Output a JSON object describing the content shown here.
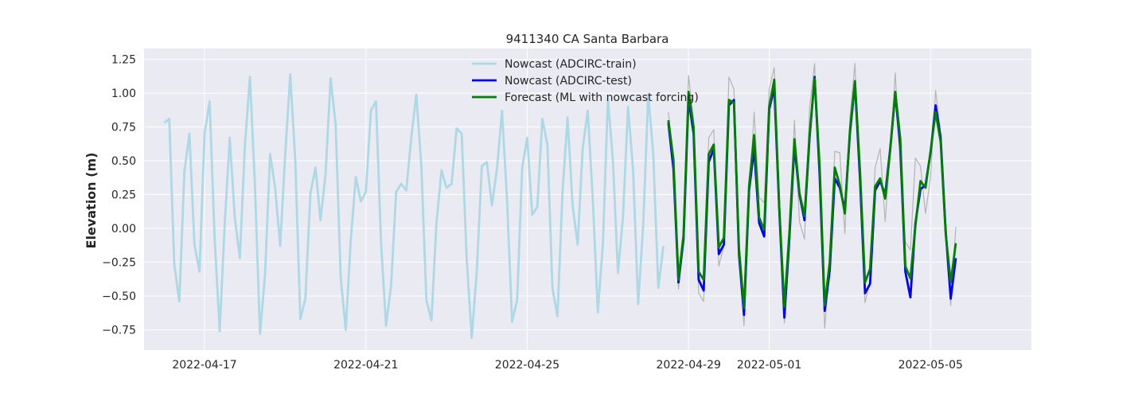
{
  "chart_data": {
    "type": "line",
    "title": "9411340 CA Santa Barbara",
    "ylabel": "Elevation (m)",
    "xlabel": "",
    "xlim": [
      "2022-04-15T12:00",
      "2022-05-07T12:00"
    ],
    "ylim": [
      -0.9,
      1.33
    ],
    "yticks": [
      -0.75,
      -0.5,
      -0.25,
      0.0,
      0.25,
      0.5,
      0.75,
      1.0,
      1.25
    ],
    "ytick_labels": [
      "−0.75",
      "−0.50",
      "−0.25",
      "0.00",
      "0.25",
      "0.50",
      "0.75",
      "1.00",
      "1.25"
    ],
    "xticks": [
      "2022-04-17",
      "2022-04-21",
      "2022-04-25",
      "2022-04-29",
      "2022-05-01",
      "2022-05-05"
    ],
    "grid": true,
    "legend_position": "top-center",
    "series": [
      {
        "name": "Nowcast (ADCIRC-train)",
        "color": "#add8e6",
        "start": "2022-04-16T00:00",
        "step_hours": 3,
        "values": [
          0.78,
          0.81,
          -0.27,
          -0.54,
          0.42,
          0.7,
          -0.12,
          -0.32,
          0.7,
          0.94,
          -0.07,
          -0.76,
          0.03,
          0.67,
          0.08,
          -0.22,
          0.61,
          1.12,
          0.31,
          -0.78,
          -0.34,
          0.55,
          0.3,
          -0.13,
          0.55,
          1.14,
          0.5,
          -0.67,
          -0.52,
          0.26,
          0.45,
          0.06,
          0.4,
          1.11,
          0.77,
          -0.36,
          -0.75,
          -0.09,
          0.38,
          0.2,
          0.27,
          0.87,
          0.94,
          -0.1,
          -0.72,
          -0.42,
          0.27,
          0.33,
          0.28,
          0.67,
          0.99,
          0.46,
          -0.53,
          -0.68,
          0.04,
          0.43,
          0.3,
          0.33,
          0.74,
          0.7,
          -0.23,
          -0.81,
          -0.31,
          0.46,
          0.49,
          0.17,
          0.44,
          0.87,
          0.21,
          -0.69,
          -0.53,
          0.45,
          0.67,
          0.1,
          0.16,
          0.81,
          0.62,
          -0.44,
          -0.65,
          0.27,
          0.82,
          0.17,
          -0.12,
          0.59,
          0.87,
          0.22,
          -0.62,
          -0.12,
          0.96,
          0.5,
          -0.33,
          0.09,
          0.9,
          0.43,
          -0.56,
          0.02,
          0.99,
          0.55,
          -0.44,
          -0.13
        ]
      },
      {
        "name": "",
        "color": "#b4b4b4",
        "start": "2022-04-28T12:00",
        "step_hours": 3,
        "values": [
          0.86,
          0.49,
          -0.45,
          -0.07,
          1.13,
          0.8,
          -0.48,
          -0.54,
          0.67,
          0.73,
          -0.28,
          -0.13,
          1.12,
          1.03,
          -0.23,
          -0.72,
          0.19,
          0.86,
          0.23,
          0.19,
          1.03,
          1.19,
          0.19,
          -0.7,
          -0.17,
          0.8,
          0.05,
          -0.08,
          0.89,
          1.22,
          0.24,
          -0.74,
          -0.26,
          0.57,
          0.56,
          -0.04,
          0.82,
          1.22,
          0.3,
          -0.55,
          -0.39,
          0.45,
          0.59,
          0.05,
          0.57,
          1.15,
          0.44,
          -0.1,
          -0.16,
          0.52,
          0.46,
          0.11,
          0.38,
          1.02,
          0.7,
          -0.05,
          -0.57,
          0.01
        ]
      },
      {
        "name": "Nowcast (ADCIRC-test)",
        "color": "#0000ff",
        "start": "2022-04-28T12:00",
        "step_hours": 3,
        "values": [
          0.78,
          0.44,
          -0.4,
          -0.08,
          0.96,
          0.7,
          -0.38,
          -0.46,
          0.49,
          0.59,
          -0.19,
          -0.12,
          0.91,
          0.95,
          -0.19,
          -0.64,
          0.28,
          0.59,
          0.04,
          -0.06,
          0.88,
          1.04,
          0.13,
          -0.66,
          -0.07,
          0.61,
          0.25,
          0.06,
          0.67,
          1.12,
          0.4,
          -0.61,
          -0.31,
          0.37,
          0.3,
          0.14,
          0.7,
          1.07,
          0.37,
          -0.48,
          -0.41,
          0.28,
          0.35,
          0.25,
          0.59,
          1.0,
          0.6,
          -0.32,
          -0.51,
          0.04,
          0.29,
          0.32,
          0.56,
          0.91,
          0.67,
          -0.02,
          -0.52,
          -0.22
        ]
      },
      {
        "name": "Forecast (ML with nowcast forcing)",
        "color": "#008000",
        "start": "2022-04-28T12:00",
        "step_hours": 3,
        "values": [
          0.8,
          0.51,
          -0.38,
          -0.05,
          1.01,
          0.75,
          -0.32,
          -0.38,
          0.55,
          0.62,
          -0.14,
          -0.07,
          0.95,
          0.93,
          -0.15,
          -0.59,
          0.31,
          0.69,
          0.08,
          -0.01,
          0.9,
          1.1,
          0.15,
          -0.58,
          -0.03,
          0.66,
          0.26,
          0.09,
          0.69,
          1.11,
          0.46,
          -0.57,
          -0.25,
          0.45,
          0.32,
          0.11,
          0.72,
          1.09,
          0.43,
          -0.4,
          -0.3,
          0.31,
          0.37,
          0.22,
          0.58,
          1.01,
          0.66,
          -0.28,
          -0.37,
          0.02,
          0.35,
          0.3,
          0.57,
          0.86,
          0.64,
          -0.04,
          -0.4,
          -0.11
        ]
      }
    ]
  }
}
